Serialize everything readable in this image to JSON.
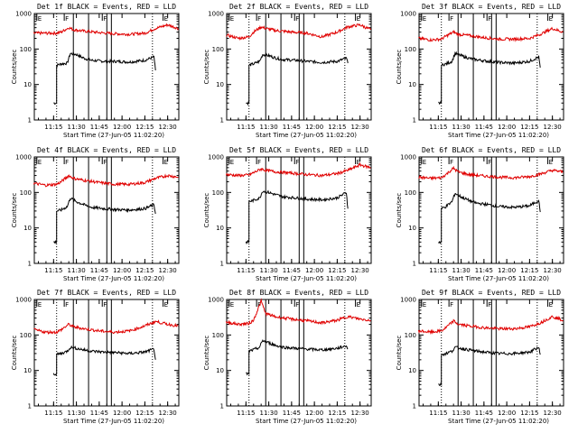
{
  "colors": {
    "events": "#000000",
    "lld": "#e00000",
    "background": "#ffffff",
    "axes": "#000000"
  },
  "common": {
    "ylabel": "Counts/sec",
    "xlabel": "Start Time (27-Jun-05 11:02:20)",
    "x_tick_labels": [
      "11:15",
      "11:30",
      "11:45",
      "12:00",
      "12:15",
      "12:30"
    ],
    "y_tick_labels": [
      "1",
      "10",
      "100",
      "1000"
    ],
    "marker_labels": [
      "E",
      "F",
      "F",
      "E"
    ]
  },
  "chart_data": [
    {
      "type": "line",
      "title": "Det 1f BLACK = Events, RED = LLD",
      "log_y": true,
      "ylim": [
        1,
        1000
      ],
      "xlim": [
        "11:02:20",
        "12:37:20"
      ],
      "marker_times": [
        "11:04",
        "11:22",
        "11:47",
        "12:27"
      ],
      "solid_lines": [
        "11:28",
        "11:38",
        "11:50",
        "11:53"
      ],
      "dotted_lines": [
        "11:17",
        "12:20"
      ],
      "series": [
        {
          "name": "Events",
          "x": [
            "11:15",
            "11:17",
            "11:17",
            "11:20",
            "11:24",
            "11:26",
            "11:30",
            "11:35",
            "11:40",
            "11:48",
            "11:55",
            "12:05",
            "12:15",
            "12:21",
            "12:22"
          ],
          "y": [
            3,
            3,
            35,
            38,
            40,
            75,
            70,
            55,
            48,
            45,
            45,
            43,
            48,
            60,
            25
          ]
        },
        {
          "name": "LLD",
          "x": [
            "11:02",
            "11:10",
            "11:17",
            "11:20",
            "11:25",
            "11:28",
            "11:35",
            "11:45",
            "11:55",
            "12:05",
            "12:15",
            "12:22",
            "12:30",
            "12:37"
          ],
          "y": [
            280,
            280,
            280,
            300,
            400,
            350,
            320,
            290,
            270,
            260,
            280,
            380,
            480,
            380
          ]
        }
      ]
    },
    {
      "type": "line",
      "title": "Det 2f BLACK = Events, RED = LLD",
      "log_y": true,
      "ylim": [
        1,
        1000
      ],
      "xlim": [
        "11:02:20",
        "12:37:20"
      ],
      "marker_times": [
        "11:04",
        "11:22",
        "11:47",
        "12:27"
      ],
      "solid_lines": [
        "11:28",
        "11:38",
        "11:50",
        "11:53"
      ],
      "dotted_lines": [
        "11:17",
        "12:20"
      ],
      "series": [
        {
          "name": "Events",
          "x": [
            "11:15",
            "11:17",
            "11:17",
            "11:20",
            "11:24",
            "11:26",
            "11:30",
            "11:35",
            "11:40",
            "11:48",
            "11:55",
            "12:05",
            "12:15",
            "12:21",
            "12:22"
          ],
          "y": [
            3,
            3,
            35,
            38,
            45,
            70,
            65,
            55,
            50,
            48,
            45,
            42,
            45,
            55,
            40
          ]
        },
        {
          "name": "LLD",
          "x": [
            "11:02",
            "11:10",
            "11:17",
            "11:20",
            "11:25",
            "11:28",
            "11:35",
            "11:45",
            "11:55",
            "12:05",
            "12:15",
            "12:22",
            "12:30",
            "12:37"
          ],
          "y": [
            250,
            200,
            220,
            300,
            420,
            380,
            330,
            300,
            280,
            220,
            300,
            420,
            480,
            350
          ]
        }
      ]
    },
    {
      "type": "line",
      "title": "Det 3f BLACK = Events, RED = LLD",
      "log_y": true,
      "ylim": [
        1,
        1000
      ],
      "xlim": [
        "11:02:20",
        "12:37:20"
      ],
      "marker_times": [
        "11:04",
        "11:22",
        "11:47",
        "12:27"
      ],
      "solid_lines": [
        "11:28",
        "11:38",
        "11:50",
        "11:53"
      ],
      "dotted_lines": [
        "11:17",
        "12:20"
      ],
      "series": [
        {
          "name": "Events",
          "x": [
            "11:15",
            "11:17",
            "11:17",
            "11:20",
            "11:24",
            "11:26",
            "11:30",
            "11:35",
            "11:40",
            "11:48",
            "11:55",
            "12:05",
            "12:15",
            "12:21",
            "12:22"
          ],
          "y": [
            3,
            3,
            35,
            38,
            45,
            75,
            65,
            55,
            50,
            45,
            42,
            40,
            45,
            60,
            30
          ]
        },
        {
          "name": "LLD",
          "x": [
            "11:02",
            "11:10",
            "11:17",
            "11:20",
            "11:25",
            "11:28",
            "11:35",
            "11:45",
            "11:55",
            "12:05",
            "12:15",
            "12:22",
            "12:30",
            "12:37"
          ],
          "y": [
            200,
            180,
            190,
            230,
            300,
            260,
            240,
            210,
            190,
            190,
            200,
            260,
            380,
            300
          ]
        }
      ]
    },
    {
      "type": "line",
      "title": "Det 4f BLACK = Events, RED = LLD",
      "log_y": true,
      "ylim": [
        1,
        1000
      ],
      "xlim": [
        "11:02:20",
        "12:37:20"
      ],
      "marker_times": [
        "11:04",
        "11:22",
        "11:47",
        "12:27"
      ],
      "solid_lines": [
        "11:28",
        "11:38",
        "11:50",
        "11:53"
      ],
      "dotted_lines": [
        "11:17",
        "12:20"
      ],
      "series": [
        {
          "name": "Events",
          "x": [
            "11:15",
            "11:17",
            "11:17",
            "11:20",
            "11:24",
            "11:26",
            "11:30",
            "11:35",
            "11:40",
            "11:48",
            "11:55",
            "12:05",
            "12:15",
            "12:21",
            "12:22"
          ],
          "y": [
            4,
            4,
            30,
            32,
            40,
            70,
            55,
            45,
            38,
            35,
            33,
            32,
            35,
            45,
            25
          ]
        },
        {
          "name": "LLD",
          "x": [
            "11:02",
            "11:10",
            "11:17",
            "11:20",
            "11:25",
            "11:28",
            "11:35",
            "11:45",
            "11:55",
            "12:05",
            "12:15",
            "12:22",
            "12:30",
            "12:37"
          ],
          "y": [
            180,
            160,
            170,
            200,
            300,
            250,
            220,
            190,
            170,
            170,
            190,
            250,
            300,
            270
          ]
        }
      ]
    },
    {
      "type": "line",
      "title": "Det 5f BLACK = Events, RED = LLD",
      "log_y": true,
      "ylim": [
        1,
        1000
      ],
      "xlim": [
        "11:02:20",
        "12:37:20"
      ],
      "marker_times": [
        "11:04",
        "11:22",
        "11:47",
        "12:27"
      ],
      "solid_lines": [
        "11:28",
        "11:38",
        "11:50",
        "11:53"
      ],
      "dotted_lines": [
        "11:17",
        "12:20"
      ],
      "series": [
        {
          "name": "Events",
          "x": [
            "11:15",
            "11:17",
            "11:17",
            "11:20",
            "11:24",
            "11:26",
            "11:30",
            "11:35",
            "11:40",
            "11:48",
            "11:55",
            "12:05",
            "12:15",
            "12:21",
            "12:22"
          ],
          "y": [
            4,
            4,
            55,
            60,
            70,
            110,
            100,
            85,
            75,
            70,
            65,
            62,
            70,
            100,
            35
          ]
        },
        {
          "name": "LLD",
          "x": [
            "11:02",
            "11:10",
            "11:17",
            "11:20",
            "11:25",
            "11:28",
            "11:35",
            "11:45",
            "11:55",
            "12:05",
            "12:15",
            "12:22",
            "12:30",
            "12:37"
          ],
          "y": [
            320,
            300,
            310,
            360,
            460,
            420,
            380,
            350,
            320,
            300,
            340,
            420,
            600,
            500
          ]
        }
      ]
    },
    {
      "type": "line",
      "title": "Det 6f BLACK = Events, RED = LLD",
      "log_y": true,
      "ylim": [
        1,
        1000
      ],
      "xlim": [
        "11:02:20",
        "12:37:20"
      ],
      "marker_times": [
        "11:04",
        "11:22",
        "11:47",
        "12:27"
      ],
      "solid_lines": [
        "11:28",
        "11:38",
        "11:50",
        "11:53"
      ],
      "dotted_lines": [
        "11:17",
        "12:20"
      ],
      "series": [
        {
          "name": "Events",
          "x": [
            "11:15",
            "11:17",
            "11:17",
            "11:20",
            "11:24",
            "11:26",
            "11:30",
            "11:35",
            "11:40",
            "11:48",
            "11:55",
            "12:05",
            "12:15",
            "12:21",
            "12:22"
          ],
          "y": [
            4,
            4,
            35,
            40,
            55,
            95,
            75,
            60,
            50,
            45,
            40,
            38,
            42,
            60,
            28
          ]
        },
        {
          "name": "LLD",
          "x": [
            "11:02",
            "11:10",
            "11:17",
            "11:20",
            "11:25",
            "11:28",
            "11:35",
            "11:45",
            "11:55",
            "12:05",
            "12:15",
            "12:22",
            "12:30",
            "12:37"
          ],
          "y": [
            270,
            250,
            260,
            320,
            480,
            380,
            320,
            290,
            270,
            260,
            280,
            330,
            420,
            380
          ]
        }
      ]
    },
    {
      "type": "line",
      "title": "Det 7f BLACK = Events, RED = LLD",
      "log_y": true,
      "ylim": [
        1,
        1000
      ],
      "xlim": [
        "11:02:20",
        "12:37:20"
      ],
      "marker_times": [
        "11:04",
        "11:22",
        "11:47",
        "12:27"
      ],
      "solid_lines": [
        "11:28",
        "11:38",
        "11:50",
        "11:53"
      ],
      "dotted_lines": [
        "11:17",
        "12:20"
      ],
      "series": [
        {
          "name": "Events",
          "x": [
            "11:15",
            "11:17",
            "11:17",
            "11:20",
            "11:24",
            "11:26",
            "11:30",
            "11:35",
            "11:40",
            "11:48",
            "11:55",
            "12:05",
            "12:15",
            "12:21",
            "12:22"
          ],
          "y": [
            8,
            8,
            28,
            30,
            35,
            45,
            42,
            38,
            35,
            33,
            32,
            30,
            33,
            40,
            20
          ]
        },
        {
          "name": "LLD",
          "x": [
            "11:02",
            "11:10",
            "11:17",
            "11:20",
            "11:25",
            "11:28",
            "11:35",
            "11:45",
            "11:55",
            "12:05",
            "12:15",
            "12:22",
            "12:30",
            "12:37"
          ],
          "y": [
            140,
            120,
            120,
            140,
            200,
            170,
            150,
            130,
            120,
            130,
            180,
            240,
            200,
            180
          ]
        }
      ]
    },
    {
      "type": "line",
      "title": "Det 8f BLACK = Events, RED = LLD",
      "log_y": true,
      "ylim": [
        1,
        1000
      ],
      "xlim": [
        "11:02:20",
        "12:37:20"
      ],
      "marker_times": [
        "11:04",
        "11:22",
        "11:47",
        "12:27"
      ],
      "solid_lines": [
        "11:28",
        "11:38",
        "11:50",
        "11:53"
      ],
      "dotted_lines": [
        "11:17",
        "12:20"
      ],
      "series": [
        {
          "name": "Events",
          "x": [
            "11:15",
            "11:17",
            "11:17",
            "11:20",
            "11:24",
            "11:26",
            "11:30",
            "11:35",
            "11:40",
            "11:48",
            "11:55",
            "12:05",
            "12:15",
            "12:21",
            "12:22"
          ],
          "y": [
            8,
            8,
            35,
            38,
            45,
            70,
            60,
            50,
            45,
            42,
            40,
            38,
            42,
            50,
            40
          ]
        },
        {
          "name": "LLD",
          "x": [
            "11:02",
            "11:10",
            "11:17",
            "11:20",
            "11:25",
            "11:28",
            "11:35",
            "11:45",
            "11:55",
            "12:05",
            "12:15",
            "12:22",
            "12:30",
            "12:37"
          ],
          "y": [
            230,
            200,
            210,
            260,
            900,
            400,
            320,
            280,
            250,
            220,
            260,
            330,
            280,
            260
          ]
        }
      ]
    },
    {
      "type": "line",
      "title": "Det 9f BLACK = Events, RED = LLD",
      "log_y": true,
      "ylim": [
        1,
        1000
      ],
      "xlim": [
        "11:02:20",
        "12:37:20"
      ],
      "marker_times": [
        "11:04",
        "11:22",
        "11:47",
        "12:27"
      ],
      "solid_lines": [
        "11:28",
        "11:38",
        "11:50",
        "11:53"
      ],
      "dotted_lines": [
        "11:17",
        "12:20"
      ],
      "series": [
        {
          "name": "Events",
          "x": [
            "11:15",
            "11:17",
            "11:17",
            "11:20",
            "11:24",
            "11:26",
            "11:30",
            "11:35",
            "11:40",
            "11:48",
            "11:55",
            "12:05",
            "12:15",
            "12:21",
            "12:22"
          ],
          "y": [
            4,
            4,
            28,
            30,
            35,
            45,
            42,
            38,
            35,
            32,
            30,
            30,
            33,
            45,
            28
          ]
        },
        {
          "name": "LLD",
          "x": [
            "11:02",
            "11:10",
            "11:17",
            "11:20",
            "11:25",
            "11:28",
            "11:35",
            "11:45",
            "11:55",
            "12:05",
            "12:15",
            "12:22",
            "12:30",
            "12:37"
          ],
          "y": [
            130,
            120,
            130,
            160,
            250,
            200,
            180,
            160,
            150,
            150,
            170,
            220,
            330,
            260
          ]
        }
      ]
    }
  ]
}
